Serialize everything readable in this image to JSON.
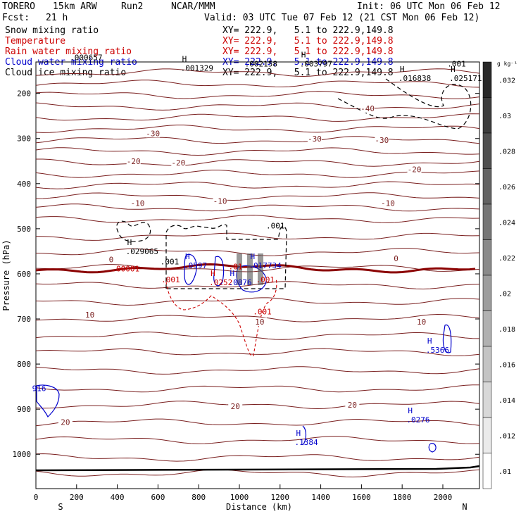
{
  "header": {
    "model": "TORERO",
    "resolution": "15km ARW",
    "run": "Run2",
    "source": "NCAR/MMM",
    "init": "Init: 06 UTC Mon 06 Feb 12",
    "fcst_label": "Fcst:",
    "fcst_value": "21 h",
    "valid": "Valid: 03 UTC Tue 07 Feb 12 (21 CST Mon 06 Feb 12)"
  },
  "legend": [
    {
      "label": "Snow mixing ratio",
      "xy": "XY= 222.9,   5.1 to 222.9,149.8",
      "color": "#000000"
    },
    {
      "label": "Temperature",
      "xy": "XY= 222.9,   5.1 to 222.9,149.8",
      "color": "#cc0000"
    },
    {
      "label": "Rain water mixing ratio",
      "xy": "XY= 222.9,   5.1 to 222.9,149.8",
      "color": "#cc0000"
    },
    {
      "label": "Cloud water mixing ratio",
      "xy": "XY= 222.9,   5.1 to 222.9,149.8",
      "color": "#0000cc"
    },
    {
      "label": "Cloud ice mixing ratio",
      "xy": "XY= 222.9,   5.1 to 222.9,149.8",
      "color": "#000000"
    }
  ],
  "chart_data": {
    "type": "cross-section",
    "xlabel": "Distance (km)",
    "ylabel": "Pressure (hPa)",
    "xlim": [
      0,
      2180
    ],
    "ylim": [
      1050,
      100
    ],
    "x_ticks": [
      0,
      200,
      400,
      600,
      800,
      1000,
      1200,
      1400,
      1600,
      1800,
      2000
    ],
    "y_ticks": [
      200,
      300,
      400,
      500,
      600,
      700,
      800,
      900,
      1000
    ],
    "end_labels": {
      "left": "S",
      "right": "N"
    },
    "colorbar": {
      "unit": "g kg⁻¹",
      "ticks": [
        ".032",
        ".03",
        ".028",
        ".026",
        ".024",
        ".022",
        ".02",
        ".018",
        ".016",
        ".014",
        ".012",
        ".01"
      ]
    },
    "temperature_labels": [
      {
        "text": "-40",
        "x": 1630,
        "p": 235
      },
      {
        "text": "-30",
        "x": 575,
        "p": 290
      },
      {
        "text": "-30",
        "x": 1370,
        "p": 302
      },
      {
        "text": "-30",
        "x": 1700,
        "p": 305
      },
      {
        "text": "-20",
        "x": 480,
        "p": 352
      },
      {
        "text": "-20",
        "x": 700,
        "p": 355
      },
      {
        "text": "-20",
        "x": 1860,
        "p": 370
      },
      {
        "text": "-10",
        "x": 500,
        "p": 445
      },
      {
        "text": "-10",
        "x": 905,
        "p": 440
      },
      {
        "text": "-10",
        "x": 1730,
        "p": 445
      },
      {
        "text": "0",
        "x": 1770,
        "p": 567
      },
      {
        "text": "0",
        "x": 370,
        "p": 570
      },
      {
        "text": "10",
        "x": 265,
        "p": 692
      },
      {
        "text": "10",
        "x": 1100,
        "p": 708
      },
      {
        "text": "10",
        "x": 1895,
        "p": 708
      },
      {
        "text": "20",
        "x": 980,
        "p": 895
      },
      {
        "text": "20",
        "x": 1555,
        "p": 892
      },
      {
        "text": "20",
        "x": 145,
        "p": 930
      }
    ],
    "annotations": [
      {
        "text": ".000657",
        "x": 215,
        "p": 122,
        "color": "#000000",
        "h": false
      },
      {
        "text": ".001329",
        "x": 760,
        "p": 145,
        "color": "#000000",
        "h": true
      },
      {
        "text": ".002158",
        "x": 1075,
        "p": 136,
        "color": "#000000",
        "h": false
      },
      {
        "text": ".003797",
        "x": 1345,
        "p": 136,
        "color": "#000000",
        "h": true
      },
      {
        "text": ".001",
        "x": 2070,
        "p": 136,
        "color": "#000000",
        "h": false
      },
      {
        "text": ".016838",
        "x": 1830,
        "p": 168,
        "color": "#000000",
        "h": true
      },
      {
        "text": ".025171",
        "x": 2080,
        "p": 168,
        "color": "#000000",
        "h": true
      },
      {
        "text": ".001",
        "x": 1180,
        "p": 495,
        "color": "#000000",
        "h": false
      },
      {
        "text": ".029065",
        "x": 490,
        "p": 552,
        "color": "#000000",
        "h": true
      },
      {
        "text": ".001",
        "x": 660,
        "p": 574,
        "color": "#000000",
        "h": false
      },
      {
        "text": ".0597",
        "x": 775,
        "p": 583,
        "color": "#0000cc",
        "h": true
      },
      {
        "text": ".00001",
        "x": 420,
        "p": 590,
        "color": "#cc0000",
        "h": false
      },
      {
        "text": ".01",
        "x": 995,
        "p": 585,
        "color": "#cc0000",
        "h": false
      },
      {
        "text": ".017734",
        "x": 1095,
        "p": 583,
        "color": "#0000cc",
        "h": true
      },
      {
        "text": ".001",
        "x": 665,
        "p": 614,
        "color": "#cc0000",
        "h": false
      },
      {
        "text": ".0252",
        "x": 900,
        "p": 620,
        "color": "#cc0000",
        "h": true
      },
      {
        "text": ".0876",
        "x": 995,
        "p": 620,
        "color": "#0000cc",
        "h": true
      },
      {
        "text": ".001",
        "x": 1130,
        "p": 614,
        "color": "#cc0000",
        "h": false
      },
      {
        "text": ".001",
        "x": 1115,
        "p": 685,
        "color": "#cc0000",
        "h": false
      },
      {
        "text": ".5366",
        "x": 1965,
        "p": 770,
        "color": "#0000cc",
        "h": true
      },
      {
        "text": "916",
        "x": 30,
        "p": 855,
        "color": "#0000cc",
        "h": false
      },
      {
        "text": ".0276",
        "x": 1870,
        "p": 925,
        "color": "#0000cc",
        "h": true
      },
      {
        "text": ".1384",
        "x": 1320,
        "p": 975,
        "color": "#0000cc",
        "h": true
      }
    ]
  }
}
